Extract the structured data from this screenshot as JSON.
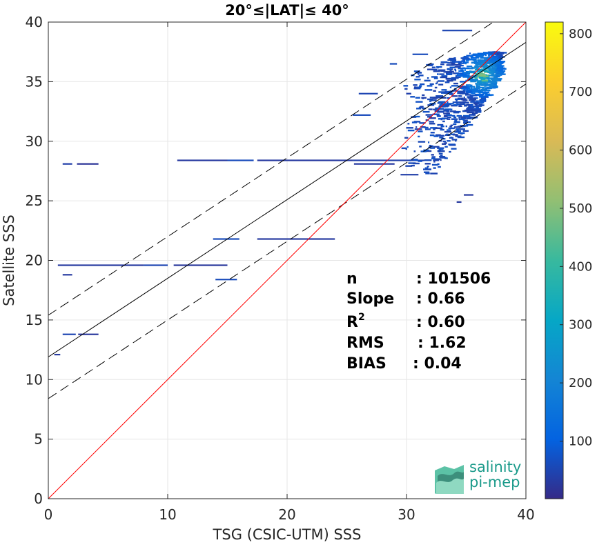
{
  "chart_data": {
    "type": "heatmap",
    "title": "20°≤|LAT|≤ 40°",
    "xlabel": "TSG (CSIC-UTM) SSS",
    "ylabel": "Satellite SSS",
    "xlim": [
      0,
      40
    ],
    "ylim": [
      0,
      40
    ],
    "xticks": [
      "0",
      "10",
      "20",
      "30",
      "40"
    ],
    "yticks": [
      "0",
      "5",
      "10",
      "15",
      "20",
      "25",
      "30",
      "35",
      "40"
    ],
    "grid": true,
    "colorbar": {
      "colormap": "parula",
      "range": [
        1,
        820
      ],
      "ticks": [
        "100",
        "200",
        "300",
        "400",
        "500",
        "600",
        "700",
        "800"
      ]
    },
    "lines": {
      "identity": {
        "color": "#ff0000",
        "x": [
          0,
          40
        ],
        "y": [
          0,
          40
        ]
      },
      "fit": {
        "color": "#000000",
        "x": [
          0,
          40
        ],
        "y": [
          11.9,
          38.3
        ]
      },
      "fit_upper": {
        "color": "#000000",
        "style": "dashed",
        "x": [
          0,
          40
        ],
        "y": [
          15.4,
          41.8
        ]
      },
      "fit_lower": {
        "color": "#000000",
        "style": "dashed",
        "x": [
          0,
          40
        ],
        "y": [
          8.4,
          34.8
        ]
      }
    },
    "stats": [
      {
        "label": "n",
        "value": ": 101506"
      },
      {
        "label": "Slope",
        "value": ": 0.66"
      },
      {
        "label": "R",
        "sup": "2",
        "value": ": 0.60"
      },
      {
        "label": "RMS",
        "value": ": 1.62"
      },
      {
        "label": "BIAS",
        "value": ": 0.04"
      }
    ],
    "streaks": [
      {
        "x0": 1.2,
        "x1": 2.0,
        "y": 28.1,
        "c": 40
      },
      {
        "x0": 2.4,
        "x1": 4.2,
        "y": 28.1,
        "c": 20
      },
      {
        "x0": 10.8,
        "x1": 15.0,
        "y": 28.4,
        "c": 30
      },
      {
        "x0": 15.0,
        "x1": 17.2,
        "y": 28.4,
        "c": 60
      },
      {
        "x0": 17.5,
        "x1": 25.5,
        "y": 28.4,
        "c": 30
      },
      {
        "x0": 25.5,
        "x1": 31.5,
        "y": 28.4,
        "c": 40
      },
      {
        "x0": 25.6,
        "x1": 29.0,
        "y": 28.1,
        "c": 30
      },
      {
        "x0": 29.5,
        "x1": 31.0,
        "y": 27.2,
        "c": 40
      },
      {
        "x0": 0.8,
        "x1": 8.0,
        "y": 19.6,
        "c": 30
      },
      {
        "x0": 8.0,
        "x1": 10.0,
        "y": 19.6,
        "c": 50
      },
      {
        "x0": 10.5,
        "x1": 15.0,
        "y": 19.6,
        "c": 25
      },
      {
        "x0": 1.2,
        "x1": 2.0,
        "y": 18.8,
        "c": 30
      },
      {
        "x0": 13.8,
        "x1": 16.0,
        "y": 21.8,
        "c": 60
      },
      {
        "x0": 17.5,
        "x1": 24.0,
        "y": 21.8,
        "c": 30
      },
      {
        "x0": 14.0,
        "x1": 15.8,
        "y": 18.4,
        "c": 60
      },
      {
        "x0": 1.2,
        "x1": 2.3,
        "y": 13.8,
        "c": 50
      },
      {
        "x0": 2.5,
        "x1": 4.2,
        "y": 13.8,
        "c": 25
      },
      {
        "x0": 0.5,
        "x1": 1.0,
        "y": 12.1,
        "c": 30
      },
      {
        "x0": 25.5,
        "x1": 27.0,
        "y": 32.2,
        "c": 60
      },
      {
        "x0": 26.0,
        "x1": 27.6,
        "y": 34.0,
        "c": 50
      },
      {
        "x0": 28.6,
        "x1": 29.2,
        "y": 36.5,
        "c": 60
      },
      {
        "x0": 30.5,
        "x1": 31.8,
        "y": 37.3,
        "c": 60
      },
      {
        "x0": 33.0,
        "x1": 35.5,
        "y": 39.3,
        "c": 50
      },
      {
        "x0": 34.8,
        "x1": 35.6,
        "y": 25.5,
        "c": 30
      },
      {
        "x0": 34.2,
        "x1": 34.6,
        "y": 24.9,
        "c": 30
      }
    ]
  }
}
